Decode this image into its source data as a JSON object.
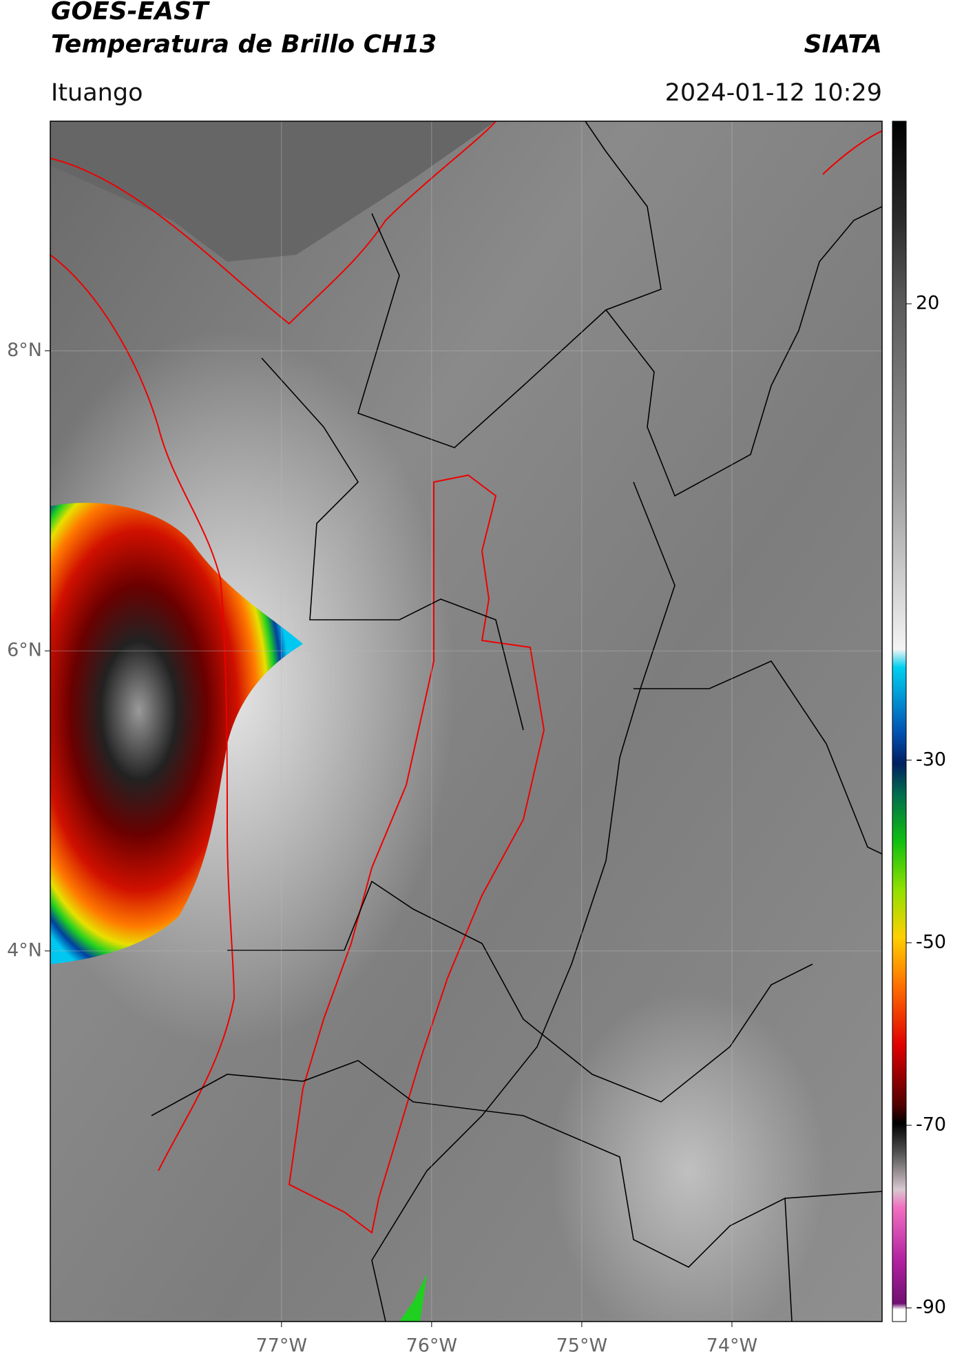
{
  "header": {
    "title": "GOES-EAST",
    "subtitle": "Temperatura de Brillo CH13",
    "org": "SIATA",
    "location": "Ituango",
    "datetime": "2024-01-12 10:29"
  },
  "map": {
    "xlim": [
      -78.54,
      -73.0
    ],
    "ylim": [
      1.53,
      9.53
    ],
    "xticks": [
      {
        "value": -77,
        "label": "77°W"
      },
      {
        "value": -76,
        "label": "76°W"
      },
      {
        "value": -75,
        "label": "75°W"
      },
      {
        "value": -74,
        "label": "74°W"
      }
    ],
    "yticks": [
      {
        "value": 8,
        "label": "8°N"
      },
      {
        "value": 6,
        "label": "6°N"
      },
      {
        "value": 4,
        "label": "4°N"
      }
    ]
  },
  "colorbar": {
    "clim": [
      -91.5,
      40
    ],
    "ticks": [
      20,
      -30,
      -50,
      -70,
      -90
    ]
  }
}
